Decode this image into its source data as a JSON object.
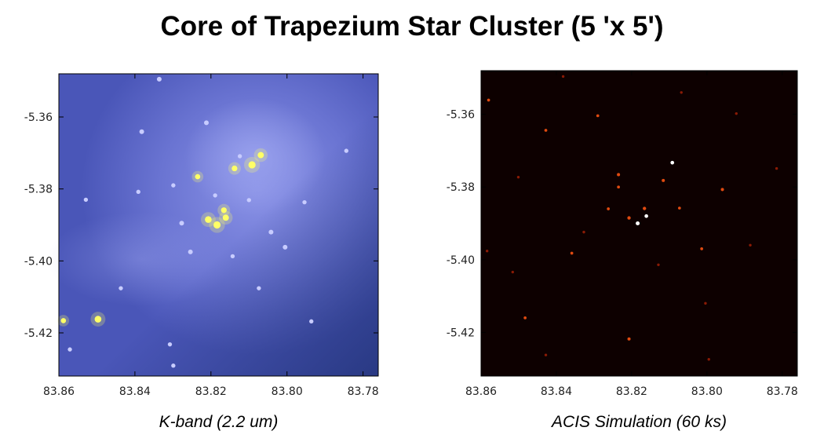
{
  "title": "Core of Trapezium Star Cluster (5 'x 5')",
  "chart_data": [
    {
      "type": "heatmap",
      "caption": "K-band (2.2 um)",
      "x_ticks": [
        "83.86",
        "83.84",
        "83.82",
        "83.80",
        "83.78"
      ],
      "y_ticks": [
        "-5.36",
        "-5.38",
        "-5.40",
        "-5.42"
      ],
      "x_tick_values": [
        83.86,
        83.84,
        83.82,
        83.8,
        83.78
      ],
      "y_tick_values": [
        -5.36,
        -5.38,
        -5.4,
        -5.42
      ],
      "xlim": [
        83.86,
        83.776
      ],
      "ylim": [
        -5.432,
        -5.348
      ],
      "colormap": {
        "background": "#4a56b8",
        "nebula": "#7e86de",
        "edge": "#23347a",
        "star_bright": "#ffff66",
        "star_faint": "#c8ccff"
      },
      "sources": [
        {
          "ra": 83.8092,
          "dec": -5.3733,
          "brightness": 1.0
        },
        {
          "ra": 83.8138,
          "dec": -5.3743,
          "brightness": 0.7
        },
        {
          "ra": 83.8069,
          "dec": -5.3706,
          "brightness": 0.8
        },
        {
          "ra": 83.8184,
          "dec": -5.39,
          "brightness": 1.0
        },
        {
          "ra": 83.8207,
          "dec": -5.3885,
          "brightness": 0.9
        },
        {
          "ra": 83.8161,
          "dec": -5.388,
          "brightness": 0.8
        },
        {
          "ra": 83.8166,
          "dec": -5.3859,
          "brightness": 0.7
        },
        {
          "ra": 83.8235,
          "dec": -5.3766,
          "brightness": 0.6
        },
        {
          "ra": 83.8212,
          "dec": -5.3616,
          "brightness": 0.5
        },
        {
          "ra": 83.8382,
          "dec": -5.3641,
          "brightness": 0.5
        },
        {
          "ra": 83.8497,
          "dec": -5.4162,
          "brightness": 0.9
        },
        {
          "ra": 83.8277,
          "dec": -5.3895,
          "brightness": 0.5
        },
        {
          "ra": 83.8042,
          "dec": -5.392,
          "brightness": 0.5
        },
        {
          "ra": 83.81,
          "dec": -5.3831,
          "brightness": 0.4
        },
        {
          "ra": 83.8189,
          "dec": -5.3818,
          "brightness": 0.4
        },
        {
          "ra": 83.8254,
          "dec": -5.3975,
          "brightness": 0.5
        },
        {
          "ra": 83.8143,
          "dec": -5.3987,
          "brightness": 0.4
        },
        {
          "ra": 83.8299,
          "dec": -5.379,
          "brightness": 0.4
        },
        {
          "ra": 83.8005,
          "dec": -5.3962,
          "brightness": 0.5
        },
        {
          "ra": 83.8124,
          "dec": -5.3709,
          "brightness": 0.4
        },
        {
          "ra": 83.8391,
          "dec": -5.3808,
          "brightness": 0.4
        },
        {
          "ra": 83.8529,
          "dec": -5.383,
          "brightness": 0.4
        },
        {
          "ra": 83.8336,
          "dec": -5.3495,
          "brightness": 0.5
        },
        {
          "ra": 83.7844,
          "dec": -5.3694,
          "brightness": 0.4
        },
        {
          "ra": 83.7954,
          "dec": -5.3837,
          "brightness": 0.4
        },
        {
          "ra": 83.8437,
          "dec": -5.4076,
          "brightness": 0.4
        },
        {
          "ra": 83.8571,
          "dec": -5.4246,
          "brightness": 0.4
        },
        {
          "ra": 83.8588,
          "dec": -5.4166,
          "brightness": 0.6
        },
        {
          "ra": 83.8308,
          "dec": -5.4232,
          "brightness": 0.4
        },
        {
          "ra": 83.8074,
          "dec": -5.4076,
          "brightness": 0.4
        },
        {
          "ra": 83.7936,
          "dec": -5.4168,
          "brightness": 0.4
        },
        {
          "ra": 83.8299,
          "dec": -5.4291,
          "brightness": 0.4
        }
      ]
    },
    {
      "type": "heatmap",
      "caption": "ACIS Simulation (60 ks)",
      "x_ticks": [
        "83.86",
        "83.84",
        "83.82",
        "83.80",
        "83.78"
      ],
      "y_ticks": [
        "-5.36",
        "-5.38",
        "-5.40",
        "-5.42"
      ],
      "x_tick_values": [
        83.86,
        83.84,
        83.82,
        83.8,
        83.78
      ],
      "y_tick_values": [
        -5.36,
        -5.38,
        -5.4,
        -5.42
      ],
      "xlim": [
        83.86,
        83.776
      ],
      "ylim": [
        -5.432,
        -5.348
      ],
      "colormap": {
        "background": "#0d0000",
        "faint": "#8a1a05",
        "mid": "#e04a10",
        "bright": "#ffffff"
      },
      "sources": [
        {
          "ra": 83.8092,
          "dec": -5.3733,
          "brightness": 0.9
        },
        {
          "ra": 83.8184,
          "dec": -5.39,
          "brightness": 1.0
        },
        {
          "ra": 83.8207,
          "dec": -5.3885,
          "brightness": 0.8
        },
        {
          "ra": 83.8161,
          "dec": -5.388,
          "brightness": 0.9
        },
        {
          "ra": 83.8166,
          "dec": -5.3859,
          "brightness": 0.8
        },
        {
          "ra": 83.8235,
          "dec": -5.3766,
          "brightness": 0.7
        },
        {
          "ra": 83.8235,
          "dec": -5.38,
          "brightness": 0.6
        },
        {
          "ra": 83.7959,
          "dec": -5.3807,
          "brightness": 0.7
        },
        {
          "ra": 83.8116,
          "dec": -5.3782,
          "brightness": 0.7
        },
        {
          "ra": 83.8428,
          "dec": -5.3644,
          "brightness": 0.6
        },
        {
          "ra": 83.858,
          "dec": -5.3561,
          "brightness": 0.6
        },
        {
          "ra": 83.829,
          "dec": -5.3604,
          "brightness": 0.6
        },
        {
          "ra": 83.7922,
          "dec": -5.3598,
          "brightness": 0.5
        },
        {
          "ra": 83.8501,
          "dec": -5.3773,
          "brightness": 0.5
        },
        {
          "ra": 83.8014,
          "dec": -5.397,
          "brightness": 0.6
        },
        {
          "ra": 83.8359,
          "dec": -5.3982,
          "brightness": 0.6
        },
        {
          "ra": 83.8516,
          "dec": -5.4034,
          "brightness": 0.5
        },
        {
          "ra": 83.8129,
          "dec": -5.4014,
          "brightness": 0.5
        },
        {
          "ra": 83.8483,
          "dec": -5.416,
          "brightness": 0.6
        },
        {
          "ra": 83.8207,
          "dec": -5.4218,
          "brightness": 0.7
        },
        {
          "ra": 83.8004,
          "dec": -5.412,
          "brightness": 0.5
        },
        {
          "ra": 83.7885,
          "dec": -5.396,
          "brightness": 0.5
        },
        {
          "ra": 83.7815,
          "dec": -5.3749,
          "brightness": 0.5
        },
        {
          "ra": 83.8584,
          "dec": -5.3976,
          "brightness": 0.5
        },
        {
          "ra": 83.8428,
          "dec": -5.4262,
          "brightness": 0.5
        },
        {
          "ra": 83.7995,
          "dec": -5.4274,
          "brightness": 0.5
        },
        {
          "ra": 83.8382,
          "dec": -5.3496,
          "brightness": 0.5
        },
        {
          "ra": 83.8068,
          "dec": -5.354,
          "brightness": 0.5
        },
        {
          "ra": 83.8262,
          "dec": -5.386,
          "brightness": 0.6
        },
        {
          "ra": 83.8327,
          "dec": -5.3924,
          "brightness": 0.5
        },
        {
          "ra": 83.8073,
          "dec": -5.3858,
          "brightness": 0.6
        }
      ]
    }
  ]
}
